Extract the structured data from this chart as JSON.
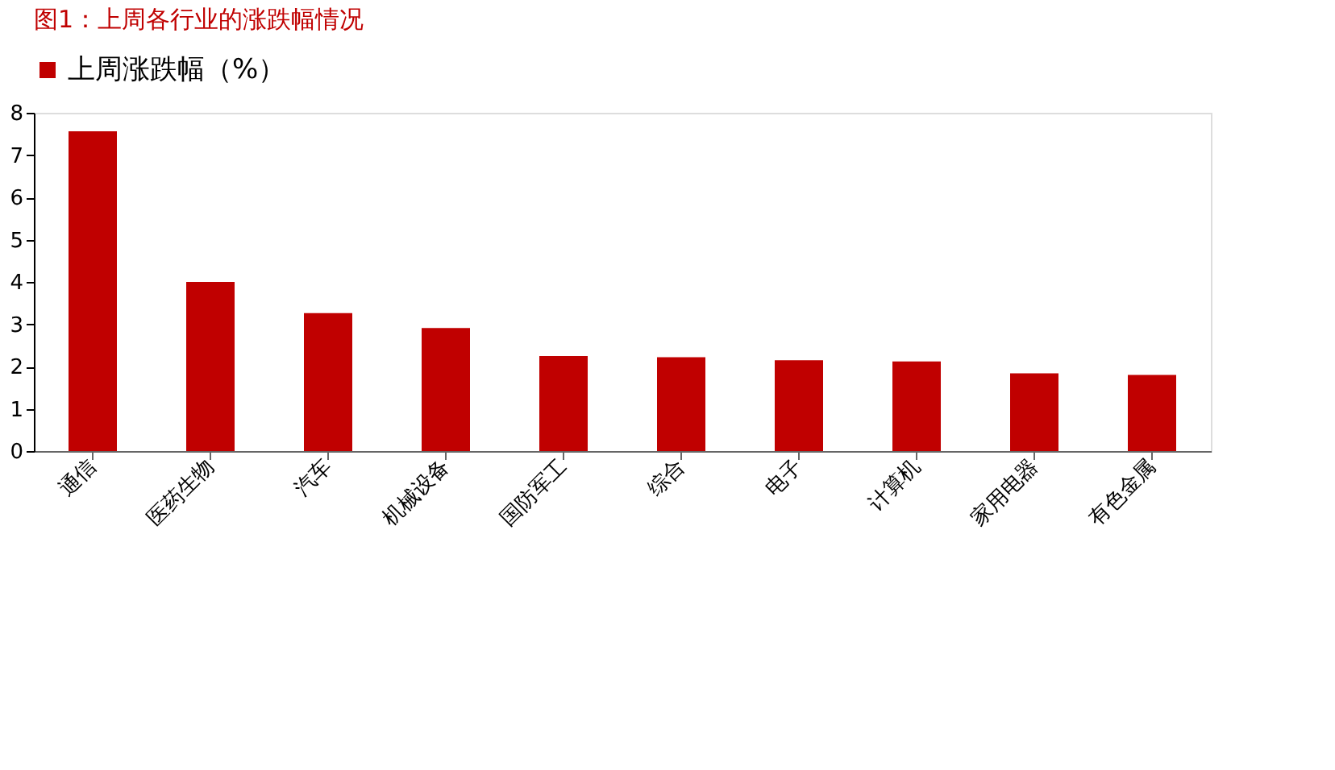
{
  "chart_data": {
    "type": "bar",
    "title": "图1：上周各行业的涨跌幅情况",
    "categories": [
      "通信",
      "医药生物",
      "汽车",
      "机械设备",
      "国防军工",
      "综合",
      "电子",
      "计算机",
      "家用电器",
      "有色金属"
    ],
    "series": [
      {
        "name": "上周涨跌幅（%）",
        "color": "#c00000",
        "values": [
          7.56,
          4.0,
          3.26,
          2.91,
          2.25,
          2.22,
          2.15,
          2.12,
          1.84,
          1.8
        ]
      }
    ],
    "ylim": [
      0,
      8
    ],
    "yticks": [
      0,
      1,
      2,
      3,
      4,
      5,
      6,
      7,
      8
    ],
    "grid": false,
    "legend": "top"
  }
}
